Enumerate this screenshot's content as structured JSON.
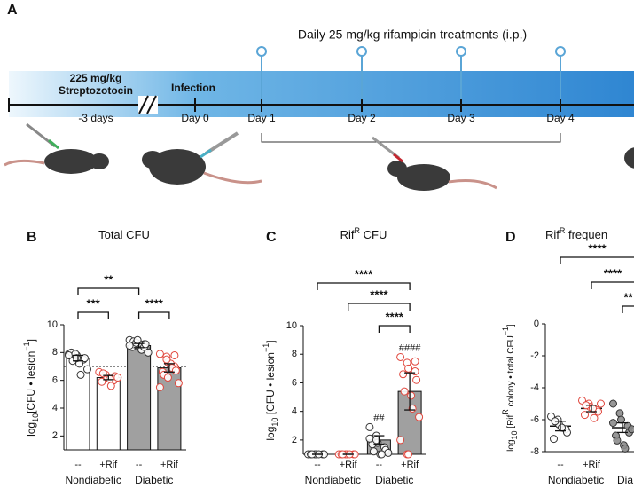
{
  "panel_a": {
    "letter": "A",
    "treatment": "Daily 25 mg/kg rifampicin treatments (i.p.)",
    "dose": "225 mg/kg",
    "drug": "Streptozotocin",
    "pre": "-3 days",
    "infection": "Infection",
    "days": [
      "Day 0",
      "Day 1",
      "Day 2",
      "Day 3",
      "Day 4"
    ]
  },
  "chart_data": [
    {
      "type": "bar",
      "letter": "B",
      "title": [
        "Total CFU"
      ],
      "title_style": [
        "normal"
      ],
      "y_label": [
        "log",
        "10",
        "[CFU • lesion",
        "−1",
        "]"
      ],
      "y_label_style": [
        "normal",
        "sub",
        "normal",
        "super",
        "normal"
      ],
      "categories": [
        "--",
        "+Rif",
        "--",
        "+Rif"
      ],
      "group_labels": [
        "Nondiabetic",
        "Diabetic"
      ],
      "values": [
        7.6,
        6.2,
        8.5,
        6.9
      ],
      "errors": [
        0.2,
        0.15,
        0.15,
        0.3
      ],
      "points": [
        [
          7.9,
          7.7,
          7.8,
          7.5,
          7.6,
          8.0,
          7.4,
          7.2,
          6.4,
          6.8,
          7.8,
          7.9,
          7.6
        ],
        [
          6.6,
          6.4,
          6.2,
          6.0,
          6.3,
          5.9,
          6.5,
          6.1,
          5.6,
          6.2
        ],
        [
          8.9,
          8.7,
          8.5,
          8.6,
          8.3,
          8.4,
          8.8,
          8.6,
          8.2,
          8.0,
          8.5,
          8.7,
          8.9,
          8.4,
          8.6
        ],
        [
          7.9,
          7.7,
          7.3,
          7.0,
          6.8,
          6.6,
          6.4,
          7.2,
          6.9,
          5.8,
          5.5,
          7.5,
          6.2,
          7.8,
          6.7
        ]
      ],
      "bar_colors": [
        "#ffffff",
        "#ffffff",
        "#a0a0a0",
        "#a0a0a0"
      ],
      "point_fill": [
        "#ffffff",
        "#ffffff",
        "#ffffff",
        "#ffffff"
      ],
      "point_stroke": [
        "#333333",
        "#e0463c",
        "#333333",
        "#e0463c"
      ],
      "reference_line": 7,
      "annotations": [
        "**",
        "***",
        "****"
      ],
      "marks_above": [
        null,
        null,
        null,
        null
      ],
      "ylim": [
        1,
        10
      ],
      "yticks": [
        2,
        4,
        6,
        8,
        10
      ]
    },
    {
      "type": "bar",
      "letter": "C",
      "title": [
        "Rif",
        "R",
        " CFU"
      ],
      "title_style": [
        "normal",
        "super",
        "normal"
      ],
      "y_label": [
        "log",
        "10",
        " [CFU • lesion",
        "−1",
        "]"
      ],
      "y_label_style": [
        "normal",
        "sub",
        "normal",
        "super",
        "normal"
      ],
      "categories": [
        "--",
        "+Rif",
        "--",
        "+Rif"
      ],
      "group_labels": [
        "Nondiabetic",
        "Diabetic"
      ],
      "values": [
        1,
        1,
        2.0,
        5.4
      ],
      "errors": [
        0,
        0,
        0.3,
        1.3
      ],
      "points": [
        [
          1,
          1,
          1,
          1,
          1,
          1,
          1,
          1
        ],
        [
          1,
          1,
          1,
          1,
          1,
          1,
          1,
          1
        ],
        [
          2.9,
          2.3,
          1.8,
          1.5,
          1.3,
          1.7,
          1.2,
          1.0,
          1.0,
          1.1,
          2.1,
          2.0
        ],
        [
          7.8,
          7.4,
          7.0,
          6.8,
          6.2,
          6.6,
          5.4,
          5.1,
          4.2,
          3.6,
          2.0,
          1.0,
          1.0,
          7.5
        ]
      ],
      "bar_colors": [
        "#ffffff",
        "#ffffff",
        "#a0a0a0",
        "#a0a0a0"
      ],
      "point_fill": [
        "#ffffff",
        "#ffffff",
        "#ffffff",
        "#ffffff"
      ],
      "point_stroke": [
        "#333333",
        "#e0463c",
        "#333333",
        "#e0463c"
      ],
      "annotations": [
        "****",
        "****",
        "****"
      ],
      "marks_above": [
        null,
        null,
        "##",
        "####"
      ],
      "ylim": [
        1,
        10
      ],
      "yticks": [
        2,
        4,
        6,
        8,
        10
      ]
    },
    {
      "type": "dot",
      "letter": "D",
      "title": [
        "Rif",
        "R",
        " frequen"
      ],
      "title_style": [
        "normal",
        "super",
        "normal"
      ],
      "y_label": [
        "log",
        "10",
        " [Rif",
        "R",
        " colony • total CFU",
        "−1",
        "]"
      ],
      "y_label_style": [
        "normal",
        "sub",
        "normal",
        "super",
        "normal",
        "super",
        "normal"
      ],
      "categories": [
        "--",
        "+Rif",
        null
      ],
      "group_labels": [
        "Nondiabetic",
        "Dia"
      ],
      "values": [
        -6.4,
        -5.3,
        -6.5
      ],
      "errors": [
        0.3,
        0.2,
        0.3
      ],
      "points": [
        [
          -5.8,
          -6.0,
          -6.3,
          -6.6,
          -6.8,
          -7.2,
          -6.1,
          -6.5
        ],
        [
          -4.8,
          -5.0,
          -5.2,
          -5.4,
          -5.5,
          -5.7,
          -5.1,
          -5.3,
          -5.9,
          -5.0
        ],
        [
          -5.0,
          -5.6,
          -6.0,
          -6.4,
          -6.8,
          -7.0,
          -7.3,
          -7.6,
          -7.8,
          -6.6,
          -6.2
        ]
      ],
      "point_fill": [
        "#ffffff",
        "#ffffff",
        "#8c8c8c"
      ],
      "point_stroke": [
        "#333333",
        "#e0463c",
        "#333333"
      ],
      "annotations": [
        "****",
        "****",
        "**"
      ],
      "marks_above": [
        null,
        null,
        null
      ],
      "ylim": [
        -8,
        0
      ],
      "yticks": [
        0,
        -2,
        -4,
        -6,
        -8
      ]
    }
  ]
}
